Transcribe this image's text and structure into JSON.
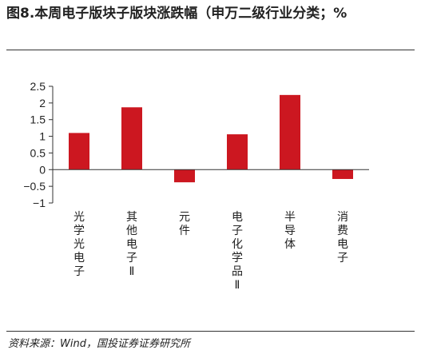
{
  "title": "图8.本周电子版块子版块涨跌幅（申万二级行业分类；%",
  "source": "资料来源：Wind，国投证券证券研究所",
  "chart_data": {
    "type": "bar",
    "categories": [
      "光学光电子",
      "其他电子Ⅱ",
      "元件",
      "电子化学品Ⅱ",
      "半导体",
      "消费电子"
    ],
    "values": [
      1.1,
      1.87,
      -0.38,
      1.06,
      2.24,
      -0.28
    ],
    "ylim": [
      -1,
      2.5
    ],
    "yticks": [
      "2.5",
      "2",
      "1.5",
      "1",
      "0.5",
      "0",
      "−0.5",
      "−1"
    ],
    "ytick_values": [
      2.5,
      2,
      1.5,
      1,
      0.5,
      0,
      -0.5,
      -1
    ],
    "bar_color": "#cc1720",
    "grid": false,
    "legend": "none"
  }
}
